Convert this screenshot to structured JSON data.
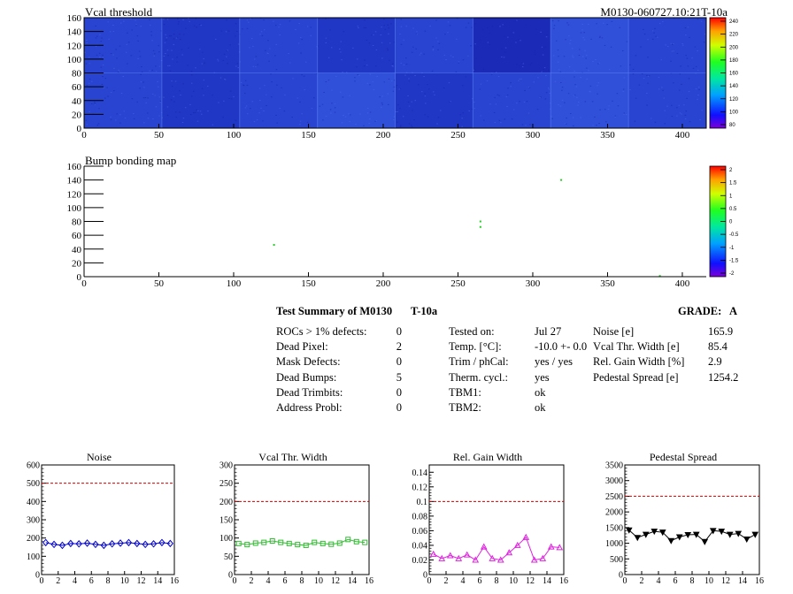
{
  "colors": {
    "heat_bg": "#2238c8",
    "bump_bg": "#ffffff",
    "noise": "#0000cc",
    "vcal": "#33bb33",
    "gain": "#dd22dd",
    "pedestal": "#000000",
    "limit": "#cc0000"
  },
  "vcal_map": {
    "title": "Vcal threshold",
    "id_label": "M0130-060727.10:21T-10a",
    "x_ticks": [
      "0",
      "50",
      "100",
      "150",
      "200",
      "250",
      "300",
      "350",
      "400"
    ],
    "y_ticks": [
      "0",
      "20",
      "40",
      "60",
      "80",
      "100",
      "120",
      "140",
      "160"
    ],
    "xlim": [
      0,
      416
    ],
    "ylim": [
      0,
      160
    ],
    "palette_ticks": [
      "80",
      "100",
      "120",
      "140",
      "160",
      "180",
      "200",
      "220",
      "240"
    ],
    "blocks_bottom": [
      2,
      1,
      2,
      3,
      1,
      2,
      3,
      2,
      0,
      1,
      2,
      1,
      3,
      2,
      1,
      2
    ],
    "blocks_top": [
      2,
      1,
      2,
      1,
      2,
      0,
      3,
      2,
      1,
      1,
      2,
      2,
      3,
      2,
      0,
      1
    ]
  },
  "bump_map": {
    "title": "Bump bonding map",
    "x_ticks": [
      "0",
      "50",
      "100",
      "150",
      "200",
      "250",
      "300",
      "350",
      "400"
    ],
    "y_ticks": [
      "0",
      "20",
      "40",
      "60",
      "80",
      "100",
      "120",
      "140",
      "160"
    ],
    "xlim": [
      0,
      416
    ],
    "ylim": [
      0,
      160
    ],
    "palette_ticks": [
      "-2",
      "-1.5",
      "-1",
      "-0.5",
      "0",
      "0.5",
      "1",
      "1.5",
      "2"
    ],
    "dead_bumps": [
      [
        127,
        46
      ],
      [
        265,
        80
      ],
      [
        265,
        72
      ],
      [
        319,
        140
      ],
      [
        385,
        1
      ]
    ]
  },
  "summary": {
    "title": "Test Summary of M0130",
    "module_code": "T-10a",
    "grade_label": "GRADE:",
    "grade": "A",
    "defects": [
      {
        "label": "ROCs > 1% defects:",
        "value": "0"
      },
      {
        "label": "Dead Pixel:",
        "value": "2"
      },
      {
        "label": "Mask Defects:",
        "value": "0"
      },
      {
        "label": "Dead Bumps:",
        "value": "5"
      },
      {
        "label": "Dead Trimbits:",
        "value": "0"
      },
      {
        "label": "Address Probl:",
        "value": "0"
      }
    ],
    "conditions": [
      {
        "label": "Tested on:",
        "value": "Jul 27"
      },
      {
        "label": "Temp. [°C]:",
        "value": "-10.0 +- 0.0"
      },
      {
        "label": "Trim / phCal:",
        "value": "yes / yes"
      },
      {
        "label": "Therm. cycl.:",
        "value": "yes"
      },
      {
        "label": "TBM1:",
        "value": "ok"
      },
      {
        "label": "TBM2:",
        "value": "ok"
      }
    ],
    "quantities": [
      {
        "label": "Noise [e]",
        "value": "165.9"
      },
      {
        "label": "Vcal Thr. Width [e]",
        "value": "85.4"
      },
      {
        "label": "Rel. Gain Width [%]",
        "value": "2.9"
      },
      {
        "label": "Pedestal Spread [e]",
        "value": "1254.2"
      }
    ]
  },
  "chart_data": [
    {
      "type": "line",
      "title": "Noise",
      "x": [
        0,
        1,
        2,
        3,
        4,
        5,
        6,
        7,
        8,
        9,
        10,
        11,
        12,
        13,
        14,
        15
      ],
      "values": [
        175,
        165,
        160,
        170,
        168,
        172,
        165,
        160,
        168,
        172,
        175,
        170,
        165,
        168,
        175,
        170
      ],
      "ylim": [
        0,
        600
      ],
      "xlim": [
        0,
        16
      ],
      "limit": 500,
      "y_ticks": [
        "0",
        "100",
        "200",
        "300",
        "400",
        "500",
        "600"
      ],
      "x_ticks": [
        "0",
        "2",
        "4",
        "6",
        "8",
        "10",
        "12",
        "14",
        "16"
      ],
      "marker": "diamond"
    },
    {
      "type": "line",
      "title": "Vcal Thr. Width",
      "x": [
        0,
        1,
        2,
        3,
        4,
        5,
        6,
        7,
        8,
        9,
        10,
        11,
        12,
        13,
        14,
        15
      ],
      "values": [
        85,
        82,
        86,
        88,
        92,
        88,
        85,
        82,
        80,
        88,
        85,
        83,
        86,
        96,
        90,
        88
      ],
      "ylim": [
        0,
        300
      ],
      "xlim": [
        0,
        16
      ],
      "limit": 200,
      "y_ticks": [
        "0",
        "50",
        "100",
        "150",
        "200",
        "250",
        "300"
      ],
      "x_ticks": [
        "0",
        "2",
        "4",
        "6",
        "8",
        "10",
        "12",
        "14",
        "16"
      ],
      "marker": "square"
    },
    {
      "type": "line",
      "title": "Rel. Gain Width",
      "x": [
        0,
        1,
        2,
        3,
        4,
        5,
        6,
        7,
        8,
        9,
        10,
        11,
        12,
        13,
        14,
        15
      ],
      "values": [
        0.028,
        0.022,
        0.026,
        0.022,
        0.027,
        0.02,
        0.038,
        0.022,
        0.02,
        0.03,
        0.04,
        0.051,
        0.02,
        0.022,
        0.038,
        0.037
      ],
      "ylim": [
        0,
        0.15
      ],
      "xlim": [
        0,
        16
      ],
      "limit": 0.1,
      "y_ticks": [
        "0",
        "0.02",
        "0.04",
        "0.06",
        "0.08",
        "0.1",
        "0.12",
        "0.14"
      ],
      "y_tick_values": [
        0,
        0.02,
        0.04,
        0.06,
        0.08,
        0.1,
        0.12,
        0.14
      ],
      "x_ticks": [
        "0",
        "2",
        "4",
        "6",
        "8",
        "10",
        "12",
        "14",
        "16"
      ],
      "marker": "triangle"
    },
    {
      "type": "line",
      "title": "Pedestal Spread",
      "x": [
        0,
        1,
        2,
        3,
        4,
        5,
        6,
        7,
        8,
        9,
        10,
        11,
        12,
        13,
        14,
        15
      ],
      "values": [
        1420,
        1180,
        1280,
        1380,
        1350,
        1080,
        1200,
        1270,
        1280,
        1050,
        1400,
        1380,
        1280,
        1310,
        1130,
        1280
      ],
      "ylim": [
        0,
        3500
      ],
      "xlim": [
        0,
        16
      ],
      "limit": 2500,
      "y_ticks": [
        "0",
        "500",
        "1000",
        "1500",
        "2000",
        "2500",
        "3000",
        "3500"
      ],
      "x_ticks": [
        "0",
        "2",
        "4",
        "6",
        "8",
        "10",
        "12",
        "14",
        "16"
      ],
      "marker": "triangle-down"
    }
  ]
}
